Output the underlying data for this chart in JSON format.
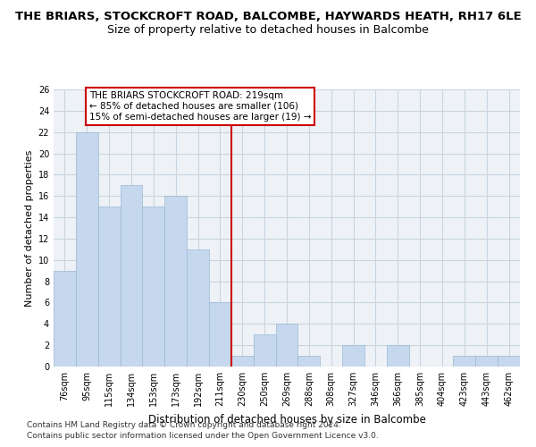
{
  "title": "THE BRIARS, STOCKCROFT ROAD, BALCOMBE, HAYWARDS HEATH, RH17 6LE",
  "subtitle": "Size of property relative to detached houses in Balcombe",
  "xlabel": "Distribution of detached houses by size in Balcombe",
  "ylabel": "Number of detached properties",
  "bar_color": "#c5d8ed",
  "bar_edge_color": "#9ab8d2",
  "grid_color": "#c8d4e0",
  "background_color": "#eef2f7",
  "categories": [
    "76sqm",
    "95sqm",
    "115sqm",
    "134sqm",
    "153sqm",
    "173sqm",
    "192sqm",
    "211sqm",
    "230sqm",
    "250sqm",
    "269sqm",
    "288sqm",
    "308sqm",
    "327sqm",
    "346sqm",
    "366sqm",
    "385sqm",
    "404sqm",
    "423sqm",
    "443sqm",
    "462sqm"
  ],
  "values": [
    9,
    22,
    15,
    17,
    15,
    16,
    11,
    6,
    1,
    3,
    4,
    1,
    0,
    2,
    0,
    2,
    0,
    0,
    1,
    1,
    1
  ],
  "ylim": [
    0,
    26
  ],
  "yticks": [
    0,
    2,
    4,
    6,
    8,
    10,
    12,
    14,
    16,
    18,
    20,
    22,
    24,
    26
  ],
  "vline_x": 7.5,
  "vline_color": "#cc0000",
  "annotation_text": "THE BRIARS STOCKCROFT ROAD: 219sqm\n← 85% of detached houses are smaller (106)\n15% of semi-detached houses are larger (19) →",
  "annotation_box_color": "#ffffff",
  "annotation_border_color": "#cc0000",
  "footer_line1": "Contains HM Land Registry data © Crown copyright and database right 2024.",
  "footer_line2": "Contains public sector information licensed under the Open Government Licence v3.0.",
  "title_fontsize": 9.5,
  "subtitle_fontsize": 9,
  "xlabel_fontsize": 8.5,
  "ylabel_fontsize": 8,
  "tick_fontsize": 7,
  "annotation_fontsize": 7.5,
  "footer_fontsize": 6.5
}
